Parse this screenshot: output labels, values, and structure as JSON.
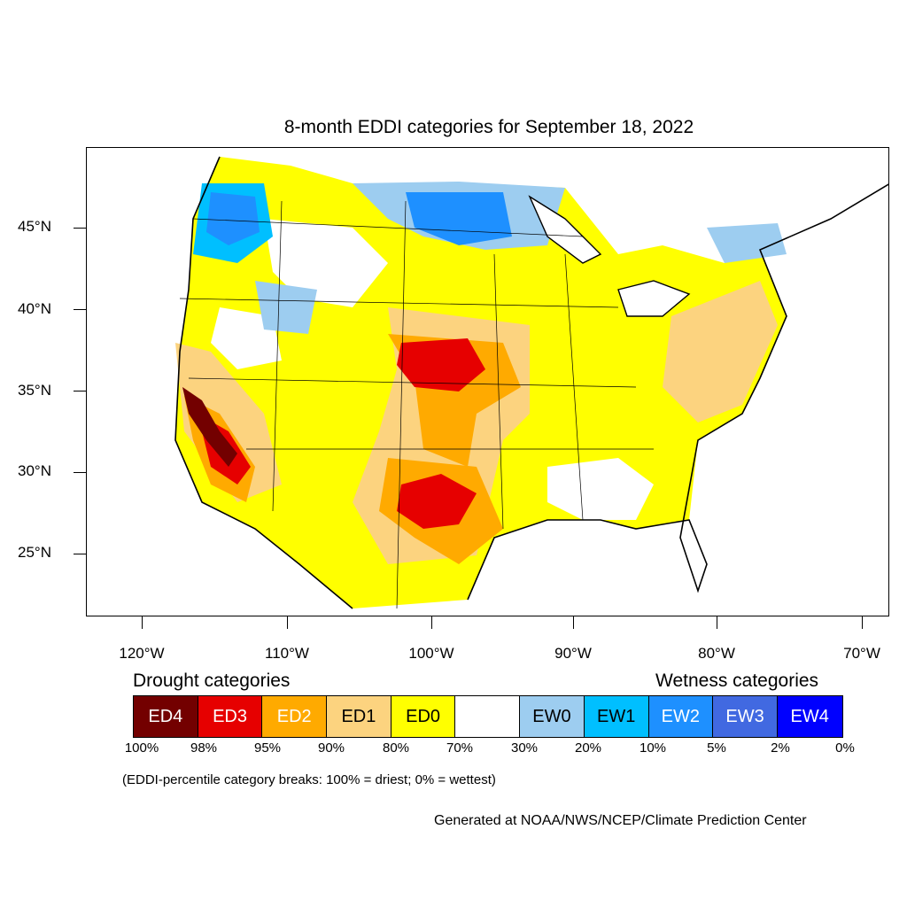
{
  "title": "8-month EDDI categories for September 18, 2022",
  "lat_labels": [
    "45°N",
    "40°N",
    "35°N",
    "30°N",
    "25°N"
  ],
  "lon_labels": [
    "120°W",
    "110°W",
    "100°W",
    "90°W",
    "80°W",
    "70°W"
  ],
  "legend": {
    "drought_heading": "Drought categories",
    "wetness_heading": "Wetness categories",
    "categories": [
      {
        "label": "ED4",
        "color": "#730000",
        "text_color": "#ffffff"
      },
      {
        "label": "ED3",
        "color": "#e60000",
        "text_color": "#ffffff"
      },
      {
        "label": "ED2",
        "color": "#ffaa00",
        "text_color": "#ffffff"
      },
      {
        "label": "ED1",
        "color": "#fcd37f",
        "text_color": "#000000"
      },
      {
        "label": "ED0",
        "color": "#ffff00",
        "text_color": "#000000"
      },
      {
        "label": "",
        "color": "#ffffff",
        "text_color": "#000000"
      },
      {
        "label": "EW0",
        "color": "#9dcdf0",
        "text_color": "#000000"
      },
      {
        "label": "EW1",
        "color": "#00bfff",
        "text_color": "#000000"
      },
      {
        "label": "EW2",
        "color": "#1e90ff",
        "text_color": "#ffffff"
      },
      {
        "label": "EW3",
        "color": "#4169e1",
        "text_color": "#ffffff"
      },
      {
        "label": "EW4",
        "color": "#0000ff",
        "text_color": "#ffffff"
      }
    ],
    "percentiles": [
      "100%",
      "98%",
      "95%",
      "90%",
      "80%",
      "70%",
      "30%",
      "20%",
      "10%",
      "5%",
      "2%",
      "0%"
    ]
  },
  "note": "(EDDI-percentile category breaks: 100% = driest; 0% = wettest)",
  "credit": "Generated at NOAA/NWS/NCEP/Climate Prediction Center"
}
